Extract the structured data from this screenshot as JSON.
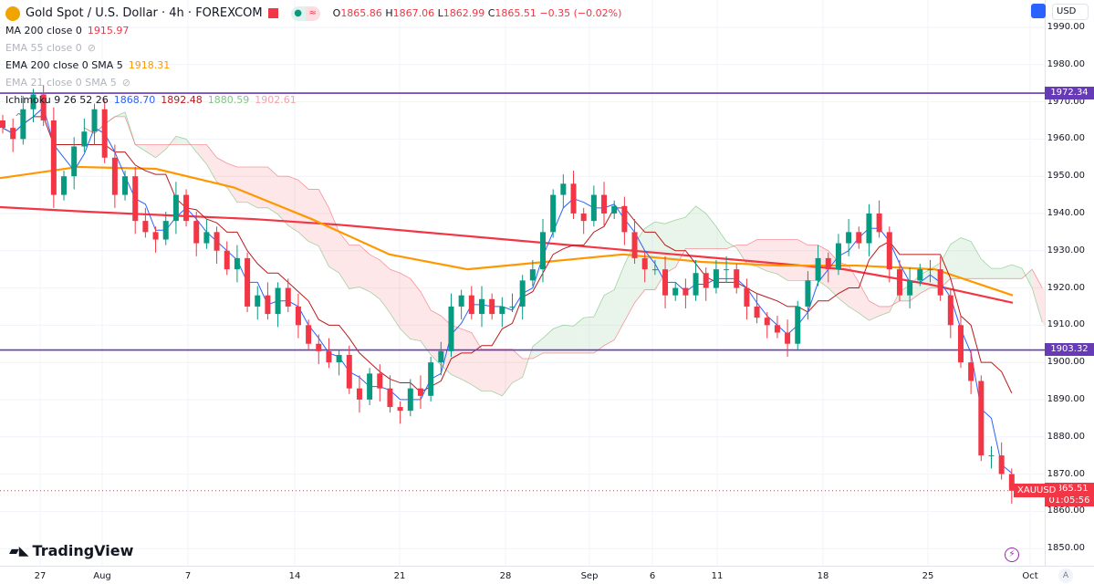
{
  "header": {
    "symbol": "Gold Spot / U.S. Dollar · 4h · FOREXCOM",
    "open_label": "O",
    "open": "1865.86",
    "high_label": "H",
    "high": "1867.06",
    "low_label": "L",
    "low": "1862.99",
    "close_label": "C",
    "close": "1865.51",
    "change": "−0.35 (−0.02%)"
  },
  "indicators": [
    {
      "label": "MA 200 close 0",
      "value": "1915.97",
      "color": "#f23645"
    },
    {
      "label": "EMA 55 close 0",
      "hidden": true
    },
    {
      "label": "EMA 200 close 0 SMA 5",
      "value": "1918.31",
      "color": "#ff9800"
    },
    {
      "label": "EMA 21 close 0 SMA 5",
      "hidden": true
    },
    {
      "label": "Ichimoku 9 26 52 26",
      "values": [
        "1868.70",
        "1892.48",
        "1880.59",
        "1902.61"
      ]
    }
  ],
  "price_axis": {
    "currency": "USD",
    "labels": [
      "1990.00",
      "1980.00",
      "1970.00",
      "1960.00",
      "1950.00",
      "1940.00",
      "1930.00",
      "1920.00",
      "1910.00",
      "1900.00",
      "1890.00",
      "1880.00",
      "1870.00",
      "1860.00",
      "1850.00"
    ],
    "lines": [
      {
        "value": "1972.34",
        "color": "#673ab7"
      },
      {
        "value": "1903.32",
        "color": "#673ab7"
      }
    ],
    "last": {
      "symbol": "XAUUSD",
      "price": "1865.51",
      "countdown": "01:05:56",
      "color": "#f23645"
    }
  },
  "time_axis": {
    "labels": [
      "27",
      "Aug",
      "7",
      "14",
      "21",
      "28",
      "Sep",
      "6",
      "11",
      "18",
      "25",
      "Oct"
    ],
    "auto_label": "A"
  },
  "brand": "TradingView",
  "chart_data": {
    "type": "candlestick",
    "ylim": [
      1845,
      1995
    ],
    "up_color": "#089981",
    "down_color": "#f23645",
    "closes": [
      1963,
      1960,
      1968,
      1972,
      1965,
      1945,
      1950,
      1958,
      1962,
      1968,
      1955,
      1945,
      1950,
      1938,
      1935,
      1933,
      1938,
      1945,
      1938,
      1932,
      1935,
      1930,
      1925,
      1928,
      1915,
      1918,
      1913,
      1920,
      1915,
      1910,
      1905,
      1903,
      1900,
      1902,
      1893,
      1890,
      1897,
      1893,
      1888,
      1887,
      1893,
      1891,
      1900,
      1903,
      1915,
      1918,
      1913,
      1917,
      1913,
      1915,
      1915,
      1922,
      1925,
      1935,
      1945,
      1948,
      1940,
      1938,
      1945,
      1940,
      1942,
      1935,
      1928,
      1925,
      1925,
      1918,
      1920,
      1918,
      1924,
      1920,
      1925,
      1925,
      1920,
      1915,
      1912,
      1910,
      1908,
      1905,
      1915,
      1922,
      1928,
      1925,
      1932,
      1935,
      1932,
      1940,
      1935,
      1925,
      1918,
      1922,
      1925,
      1925,
      1918,
      1910,
      1900,
      1895,
      1875,
      1875,
      1870,
      1865.51
    ],
    "ma200": [
      1941.7,
      1940.5,
      1939.5,
      1938.5,
      1937,
      1935,
      1933,
      1931,
      1929,
      1927,
      1925,
      1921,
      1916
    ],
    "ema200": [
      1949.5,
      1952.5,
      1952,
      1947,
      1938.5,
      1929,
      1925,
      1927,
      1929,
      1927,
      1926,
      1926,
      1925,
      1918
    ]
  }
}
